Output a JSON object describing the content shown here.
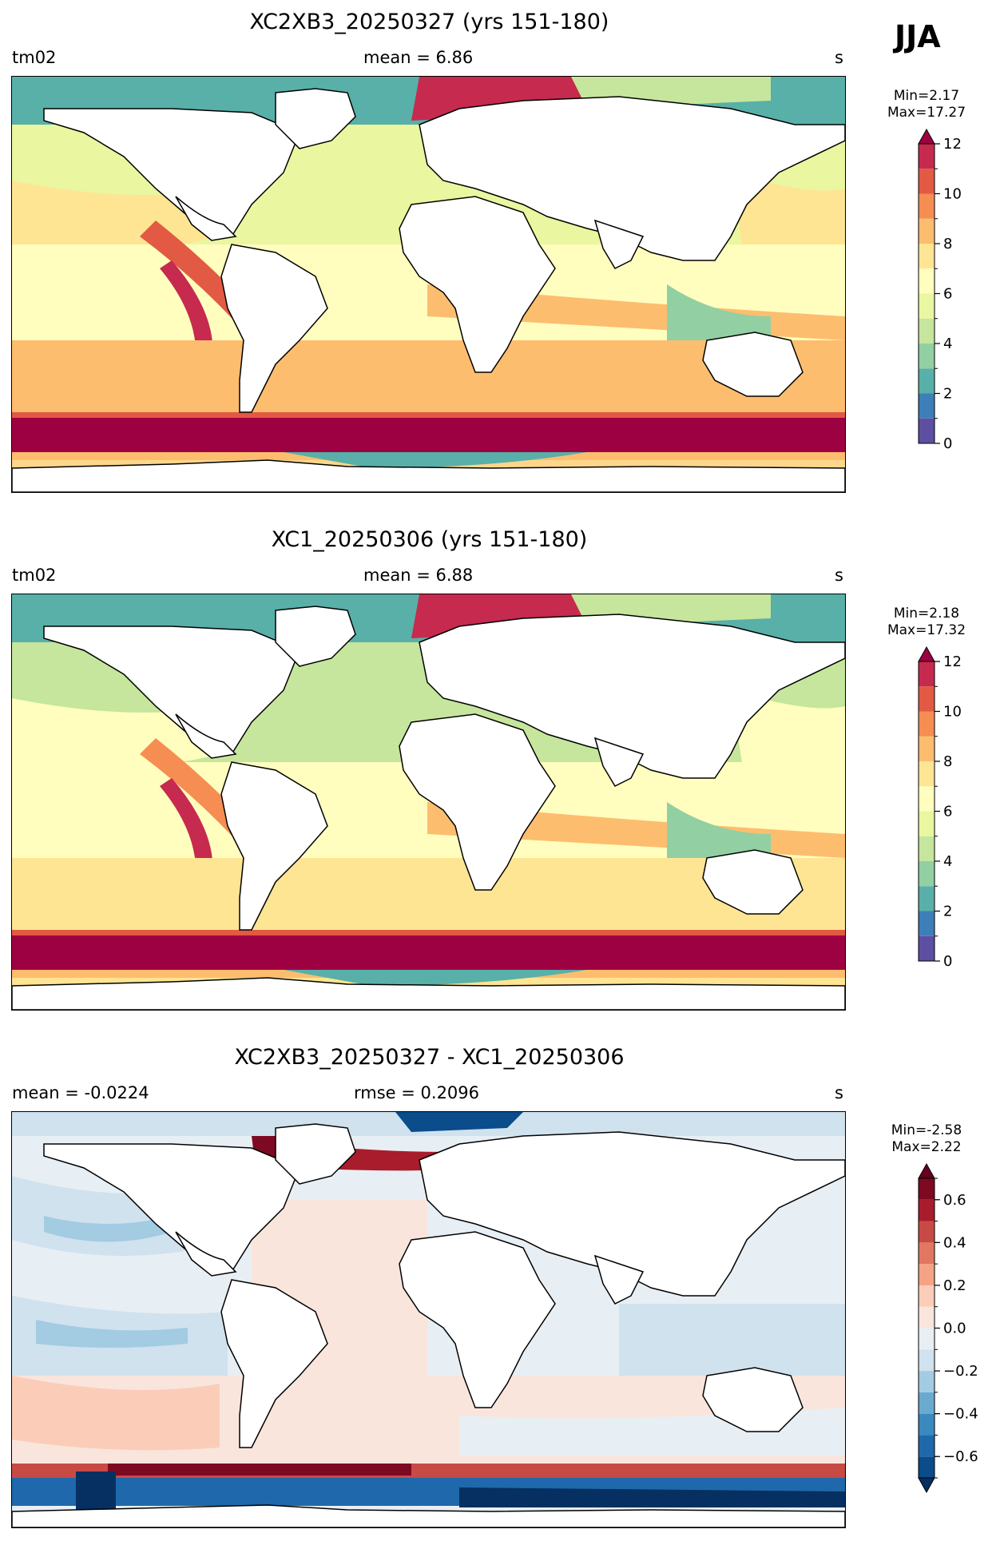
{
  "season": "JJA",
  "panels": [
    {
      "id": "p1",
      "title": "XC2XB3_20250327 (yrs 151-180)",
      "left_label": "tm02",
      "center_label": "mean = 6.86",
      "right_label": "s",
      "colorbar": {
        "min_text": "Min=2.17",
        "max_text": "Max=17.27",
        "levels": [
          0,
          1,
          2,
          3,
          4,
          5,
          6,
          7,
          8,
          9,
          10,
          11,
          12
        ],
        "tick_labels": [
          "0",
          "2",
          "4",
          "6",
          "8",
          "10",
          "12"
        ],
        "tick_values": [
          0,
          2,
          4,
          6,
          8,
          10,
          12
        ],
        "colors": [
          "#5e4fa2",
          "#3d7fb8",
          "#58b0a8",
          "#92cfa3",
          "#c5e69c",
          "#eaf6a0",
          "#fffebe",
          "#fee593",
          "#fdbd6f",
          "#f68d52",
          "#e25a43",
          "#c62a4e"
        ],
        "extend_max_color": "#9e0142"
      }
    },
    {
      "id": "p2",
      "title": "XC1_20250306 (yrs 151-180)",
      "left_label": "tm02",
      "center_label": "mean = 6.88",
      "right_label": "s",
      "colorbar": {
        "min_text": "Min=2.18",
        "max_text": "Max=17.32",
        "levels": [
          0,
          1,
          2,
          3,
          4,
          5,
          6,
          7,
          8,
          9,
          10,
          11,
          12
        ],
        "tick_labels": [
          "0",
          "2",
          "4",
          "6",
          "8",
          "10",
          "12"
        ],
        "tick_values": [
          0,
          2,
          4,
          6,
          8,
          10,
          12
        ],
        "colors": [
          "#5e4fa2",
          "#3d7fb8",
          "#58b0a8",
          "#92cfa3",
          "#c5e69c",
          "#eaf6a0",
          "#fffebe",
          "#fee593",
          "#fdbd6f",
          "#f68d52",
          "#e25a43",
          "#c62a4e"
        ],
        "extend_max_color": "#9e0142"
      }
    },
    {
      "id": "p3",
      "title": "XC2XB3_20250327 - XC1_20250306",
      "left_label": "mean = -0.0224",
      "center_label": "rmse = 0.2096",
      "right_label": "s",
      "colorbar": {
        "min_text": "Min=-2.58",
        "max_text": "Max=2.22",
        "levels": [
          -0.7,
          -0.6,
          -0.5,
          -0.4,
          -0.3,
          -0.2,
          -0.1,
          0.0,
          0.1,
          0.2,
          0.3,
          0.4,
          0.5,
          0.6,
          0.7
        ],
        "tick_labels": [
          "−0.6",
          "−0.4",
          "−0.2",
          "0.0",
          "0.2",
          "0.4",
          "0.6"
        ],
        "tick_values": [
          -0.6,
          -0.4,
          -0.2,
          0.0,
          0.2,
          0.4,
          0.6
        ],
        "colors": [
          "#0b4c8a",
          "#1f68ab",
          "#3a8abf",
          "#6aaad0",
          "#a3cbe2",
          "#cfe2ee",
          "#e7eff4",
          "#f9e5dc",
          "#fbcdb8",
          "#f4a384",
          "#e17760",
          "#c84a44",
          "#a91c2c",
          "#7d0a22"
        ],
        "extend_min_color": "#053061",
        "extend_max_color": "#67001f"
      }
    }
  ],
  "chart_data": [
    {
      "type": "heatmap",
      "title": "XC2XB3_20250327 (yrs 151-180)",
      "variable": "tm02",
      "units": "s",
      "season": "JJA",
      "mean": 6.86,
      "min": 2.17,
      "max": 17.27,
      "colorbar_range": [
        0,
        12
      ],
      "colorbar_extend": "max",
      "regions_approx": {
        "southern_ocean_storm_belt": ">12",
        "north_atlantic_arctic": "2-5",
        "eastern_pacific_tropics": "9-11",
        "open_ocean_midlatitudes": "7-9",
        "tropical_ocean": "5-7"
      }
    },
    {
      "type": "heatmap",
      "title": "XC1_20250306 (yrs 151-180)",
      "variable": "tm02",
      "units": "s",
      "season": "JJA",
      "mean": 6.88,
      "min": 2.18,
      "max": 17.32,
      "colorbar_range": [
        0,
        12
      ],
      "colorbar_extend": "max"
    },
    {
      "type": "heatmap",
      "title": "XC2XB3_20250327 - XC1_20250306",
      "units": "s",
      "mean": -0.0224,
      "rmse": 0.2096,
      "min": -2.58,
      "max": 2.22,
      "colorbar_range": [
        -0.7,
        0.7
      ],
      "colorbar_extend": "both"
    }
  ]
}
